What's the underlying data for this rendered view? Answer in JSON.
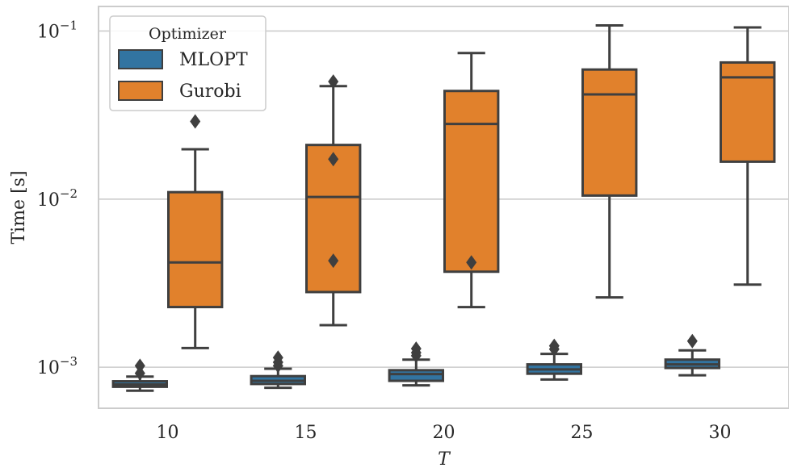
{
  "chart_data": {
    "type": "box",
    "xlabel": "T",
    "ylabel": "Time [s]",
    "yscale": "log",
    "ylim": [
      0.00057,
      0.14
    ],
    "categories": [
      "10",
      "15",
      "20",
      "25",
      "30"
    ],
    "yticks": [
      {
        "value": 0.1,
        "base": "10",
        "exp": "−1"
      },
      {
        "value": 0.01,
        "base": "10",
        "exp": "−2"
      },
      {
        "value": 0.001,
        "base": "10",
        "exp": "−3"
      }
    ],
    "grid": "horizontal",
    "legend": {
      "title": "Optimizer",
      "placement": "top-left"
    },
    "series": [
      {
        "name": "MLOPT",
        "color": "#3274a1",
        "boxes": [
          {
            "whislo": 0.000725,
            "q1": 0.000765,
            "med": 0.00079,
            "q3": 0.000825,
            "whishi": 0.00088,
            "fliers": [
              0.00092,
              0.00102
            ]
          },
          {
            "whislo": 0.000755,
            "q1": 0.000795,
            "med": 0.00083,
            "q3": 0.000885,
            "whishi": 0.00098,
            "fliers": [
              0.00102,
              0.00107,
              0.00114
            ]
          },
          {
            "whislo": 0.00078,
            "q1": 0.00083,
            "med": 0.00091,
            "q3": 0.00096,
            "whishi": 0.00111,
            "fliers": [
              0.00117,
              0.00122,
              0.00129
            ]
          },
          {
            "whislo": 0.000845,
            "q1": 0.000915,
            "med": 0.00097,
            "q3": 0.00104,
            "whishi": 0.0012,
            "fliers": [
              0.00128,
              0.00134
            ]
          },
          {
            "whislo": 0.000895,
            "q1": 0.00099,
            "med": 0.00104,
            "q3": 0.00111,
            "whishi": 0.00126,
            "fliers": [
              0.00143
            ]
          }
        ]
      },
      {
        "name": "Gurobi",
        "color": "#e1812c",
        "boxes": [
          {
            "whislo": 0.0013,
            "q1": 0.00228,
            "med": 0.0042,
            "q3": 0.011,
            "whishi": 0.0198,
            "fliers": [
              0.029
            ]
          },
          {
            "whislo": 0.00178,
            "q1": 0.0028,
            "med": 0.0103,
            "q3": 0.021,
            "whishi": 0.047,
            "fliers": [
              0.0043,
              0.0173,
              0.05
            ]
          },
          {
            "whislo": 0.00228,
            "q1": 0.0037,
            "med": 0.028,
            "q3": 0.044,
            "whishi": 0.074,
            "fliers": [
              0.0042
            ]
          },
          {
            "whislo": 0.0026,
            "q1": 0.0105,
            "med": 0.042,
            "q3": 0.059,
            "whishi": 0.108,
            "fliers": []
          },
          {
            "whislo": 0.0031,
            "q1": 0.0167,
            "med": 0.053,
            "q3": 0.065,
            "whishi": 0.105,
            "fliers": []
          }
        ]
      }
    ]
  }
}
